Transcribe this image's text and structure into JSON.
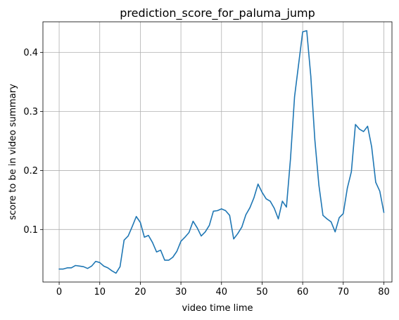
{
  "chart_data": {
    "type": "line",
    "title": "prediction_score_for_paluma_jump",
    "xlabel": "video time lime",
    "ylabel": "score to be in video summary",
    "xlim": [
      -4,
      82
    ],
    "ylim": [
      0.011,
      0.452
    ],
    "xticks": [
      0,
      10,
      20,
      30,
      40,
      50,
      60,
      70,
      80
    ],
    "yticks": [
      0.1,
      0.2,
      0.3,
      0.4
    ],
    "ytick_labels": [
      "0.1",
      "0.2",
      "0.3",
      "0.4"
    ],
    "grid": true,
    "series": [
      {
        "color": "#1f77b4",
        "x": [
          0,
          1,
          2,
          3,
          4,
          5,
          6,
          7,
          8,
          9,
          10,
          11,
          12,
          13,
          14,
          15,
          16,
          17,
          18,
          19,
          20,
          21,
          22,
          23,
          24,
          25,
          26,
          27,
          28,
          29,
          30,
          31,
          32,
          33,
          34,
          35,
          36,
          37,
          38,
          39,
          40,
          41,
          42,
          43,
          44,
          45,
          46,
          47,
          48,
          49,
          50,
          51,
          52,
          53,
          54,
          55,
          56,
          57,
          58,
          59,
          60,
          61,
          62,
          63,
          64,
          65,
          66,
          67,
          68,
          69,
          70,
          71,
          72,
          73,
          74,
          75,
          76,
          77,
          78,
          79,
          80
        ],
        "values": [
          0.033,
          0.033,
          0.035,
          0.035,
          0.039,
          0.038,
          0.037,
          0.034,
          0.038,
          0.046,
          0.044,
          0.038,
          0.035,
          0.03,
          0.026,
          0.037,
          0.082,
          0.089,
          0.105,
          0.122,
          0.112,
          0.087,
          0.09,
          0.078,
          0.062,
          0.065,
          0.048,
          0.048,
          0.053,
          0.063,
          0.08,
          0.087,
          0.095,
          0.114,
          0.103,
          0.089,
          0.096,
          0.107,
          0.131,
          0.132,
          0.135,
          0.132,
          0.124,
          0.084,
          0.093,
          0.104,
          0.125,
          0.137,
          0.154,
          0.177,
          0.163,
          0.152,
          0.148,
          0.136,
          0.118,
          0.148,
          0.138,
          0.22,
          0.325,
          0.38,
          0.435,
          0.437,
          0.36,
          0.252,
          0.175,
          0.124,
          0.118,
          0.113,
          0.096,
          0.12,
          0.127,
          0.17,
          0.198,
          0.278,
          0.27,
          0.266,
          0.275,
          0.24,
          0.18,
          0.165,
          0.129
        ]
      }
    ]
  }
}
